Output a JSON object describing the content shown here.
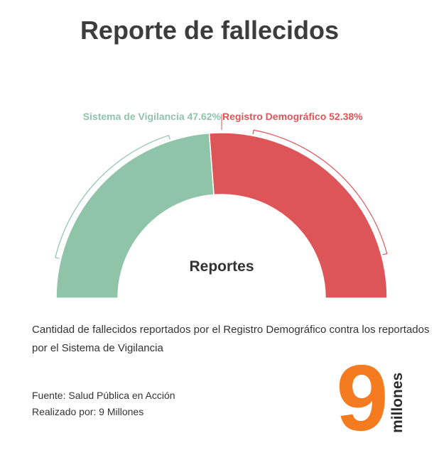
{
  "header": {
    "title": "Reporte de fallecidos"
  },
  "chart_data": {
    "type": "pie",
    "variant": "semi-donut",
    "center_label": "Reportes",
    "slices": [
      {
        "name": "Sistema de Vigilancia",
        "value": 47.62,
        "label": "Sistema de Vigilancia 47.62%",
        "color": "#8fc4a9"
      },
      {
        "name": "Registro Demográfico",
        "value": 52.38,
        "label": "Registro Demográfico 52.38%",
        "color": "#de5559"
      }
    ]
  },
  "description": "Cantidad de fallecidos reportados por el Registro Demográfico contra los reportados por el Sistema de Vigilancia",
  "source": {
    "fuente": "Fuente: Salud Pública en Acción",
    "realizado": "Realizado por: 9 Millones"
  },
  "logo": {
    "digit": "9",
    "word": "millones",
    "color": "#f47b20",
    "text_color": "#2b2b2b"
  }
}
